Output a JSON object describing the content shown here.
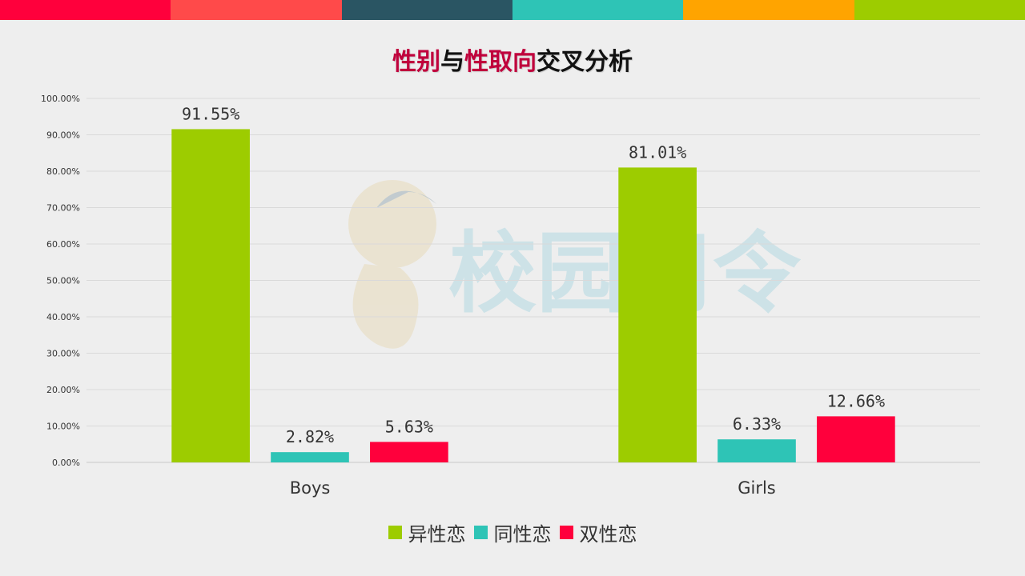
{
  "topbar_colors": [
    "#ff003c",
    "#ff4a4a",
    "#2a5563",
    "#2ec4b6",
    "#ffa400",
    "#9dcc00"
  ],
  "title": {
    "part1": "性别",
    "part2": "与",
    "part3": "性取向",
    "part4": "交叉分析",
    "highlight_color": "#c0003c"
  },
  "watermark_text": "校园司令",
  "chart_data": {
    "type": "bar",
    "categories": [
      "Boys",
      "Girls"
    ],
    "series": [
      {
        "name": "异性恋",
        "values": [
          91.55,
          81.01
        ],
        "color": "#9dcc00"
      },
      {
        "name": "同性恋",
        "values": [
          2.82,
          6.33
        ],
        "color": "#2ec4b6"
      },
      {
        "name": "双性恋",
        "values": [
          5.63,
          12.66
        ],
        "color": "#ff003c"
      }
    ],
    "data_labels": [
      [
        "91.55%",
        "81.01%"
      ],
      [
        "2.82%",
        "6.33%"
      ],
      [
        "5.63%",
        "12.66%"
      ]
    ],
    "y_ticks": [
      "0.00%",
      "10.00%",
      "20.00%",
      "30.00%",
      "40.00%",
      "50.00%",
      "60.00%",
      "70.00%",
      "80.00%",
      "90.00%",
      "100.00%"
    ],
    "ylim": [
      0,
      100
    ],
    "grid": true,
    "legend_position": "bottom-center"
  }
}
